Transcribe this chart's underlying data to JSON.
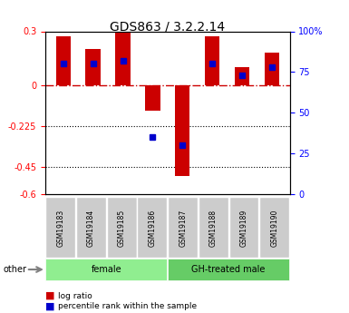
{
  "title": "GDS863 / 3.2.2.14",
  "samples": [
    "GSM19183",
    "GSM19184",
    "GSM19185",
    "GSM19186",
    "GSM19187",
    "GSM19188",
    "GSM19189",
    "GSM19190"
  ],
  "log_ratios": [
    0.27,
    0.2,
    0.3,
    -0.14,
    -0.5,
    0.27,
    0.1,
    0.18
  ],
  "percentile_ranks": [
    80,
    80,
    82,
    35,
    30,
    80,
    73,
    78
  ],
  "groups": [
    {
      "label": "female",
      "start": 0,
      "end": 4,
      "color": "#90EE90"
    },
    {
      "label": "GH-treated male",
      "start": 4,
      "end": 8,
      "color": "#66CC66"
    }
  ],
  "ylim_left": [
    -0.6,
    0.3
  ],
  "ylim_right": [
    0,
    100
  ],
  "yticks_left": [
    0.3,
    0,
    -0.225,
    -0.45,
    -0.6
  ],
  "yticks_right": [
    100,
    75,
    50,
    25,
    0
  ],
  "hlines": [
    0,
    -0.225,
    -0.45
  ],
  "bar_color": "#CC0000",
  "dot_color": "#0000CC",
  "bar_width": 0.5,
  "legend_items": [
    {
      "label": "log ratio",
      "color": "#CC0000"
    },
    {
      "label": "percentile rank within the sample",
      "color": "#0000CC"
    }
  ],
  "other_label": "other",
  "zero_line_color": "#CC0000",
  "dotted_color": "#000000",
  "background_plot": "#FFFFFF",
  "background_label": "#D3D3D3"
}
